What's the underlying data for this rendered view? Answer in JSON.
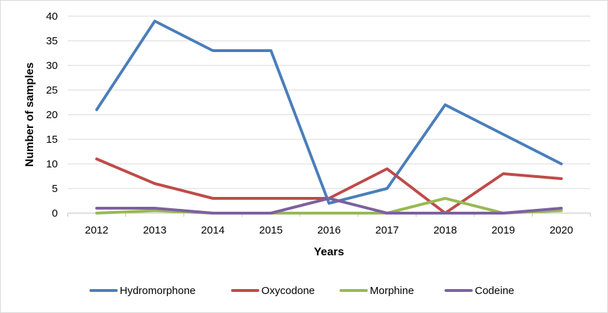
{
  "chart_data": {
    "type": "line",
    "title": "",
    "xlabel": "Years",
    "ylabel": "Number of samples",
    "categories": [
      "2012",
      "2013",
      "2014",
      "2015",
      "2016",
      "2017",
      "2018",
      "2019",
      "2020"
    ],
    "ylim": [
      0,
      40
    ],
    "yticks": [
      "0",
      "5",
      "10",
      "15",
      "20",
      "25",
      "30",
      "35",
      "40"
    ],
    "grid": "horizontal",
    "legend_position": "bottom",
    "series": [
      {
        "name": "Hydromorphone",
        "color": "#4A7EBB",
        "values": [
          21,
          39,
          33,
          33,
          2,
          5,
          22,
          16,
          10
        ]
      },
      {
        "name": "Oxycodone",
        "color": "#BE4B48",
        "values": [
          11,
          6,
          3,
          3,
          3,
          9,
          0,
          8,
          7
        ]
      },
      {
        "name": "Morphine",
        "color": "#98B954",
        "values": [
          0,
          0.5,
          0,
          0,
          0,
          0,
          3,
          0,
          0.5
        ]
      },
      {
        "name": "Codeine",
        "color": "#7D60A0",
        "values": [
          1,
          1,
          0,
          0,
          3,
          0,
          0,
          0,
          1
        ]
      }
    ]
  }
}
